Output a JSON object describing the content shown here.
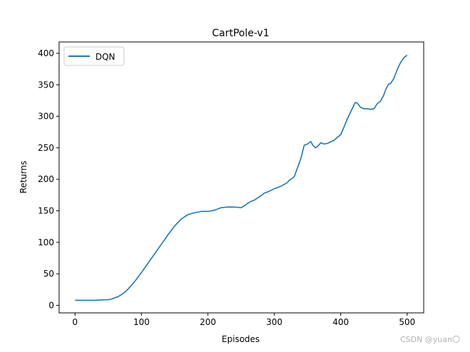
{
  "chart_data": {
    "type": "line",
    "title": "CartPole-v1",
    "xlabel": "Episodes",
    "ylabel": "Returns",
    "xlim": [
      -24,
      525
    ],
    "ylim": [
      -12,
      418
    ],
    "xticks": [
      0,
      100,
      200,
      300,
      400,
      500
    ],
    "yticks": [
      0,
      50,
      100,
      150,
      200,
      250,
      300,
      350,
      400
    ],
    "grid": false,
    "legend_placement": "upper-left",
    "series": [
      {
        "name": "DQN",
        "color": "#1f77b4",
        "x": [
          0,
          10,
          20,
          30,
          40,
          50,
          55,
          60,
          65,
          70,
          75,
          80,
          85,
          90,
          95,
          100,
          110,
          120,
          130,
          140,
          150,
          160,
          170,
          180,
          190,
          200,
          210,
          220,
          230,
          240,
          250,
          255,
          260,
          265,
          270,
          280,
          285,
          290,
          300,
          310,
          320,
          322,
          330,
          340,
          345,
          350,
          355,
          358,
          362,
          366,
          370,
          375,
          380,
          390,
          400,
          405,
          410,
          415,
          420,
          422,
          425,
          430,
          435,
          440,
          445,
          450,
          455,
          460,
          465,
          468,
          472,
          475,
          480,
          485,
          490,
          495,
          500
        ],
        "y": [
          8,
          8,
          8,
          8,
          8.5,
          9,
          10,
          12,
          14,
          17,
          21,
          26,
          32,
          38,
          45,
          52,
          67,
          82,
          97,
          112,
          126,
          137,
          144,
          147,
          149,
          149,
          151,
          155,
          156,
          156,
          155,
          158,
          162,
          165,
          167,
          174,
          178,
          180,
          185,
          189,
          195,
          198,
          204,
          233,
          254,
          256,
          260,
          254,
          250,
          253,
          258,
          256,
          257,
          262,
          271,
          283,
          296,
          307,
          318,
          322,
          321,
          314,
          312,
          312,
          311,
          312,
          320,
          324,
          334,
          343,
          351,
          352,
          360,
          374,
          385,
          393,
          397
        ]
      }
    ]
  },
  "watermark": "CSDN @yuan〇"
}
